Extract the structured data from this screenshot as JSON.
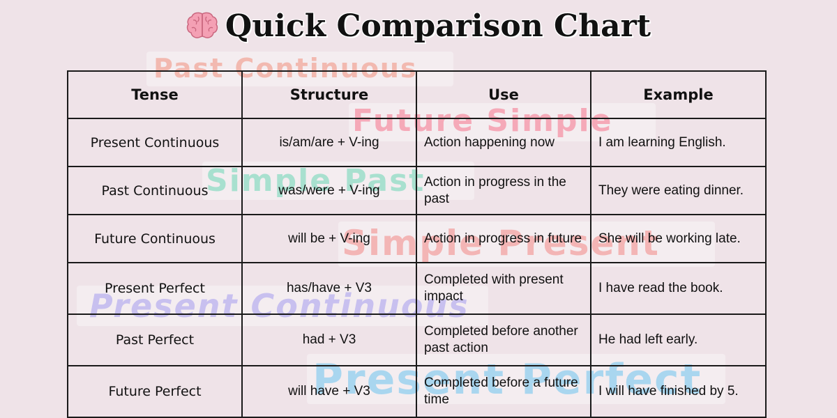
{
  "title": {
    "icon": "brain-icon",
    "text": "Quick Comparison Chart"
  },
  "background_words": [
    {
      "text": "Past Continuous",
      "color": "#f2b9b0"
    },
    {
      "text": "Future Simple",
      "color": "#f5a9b8"
    },
    {
      "text": "Simple Past",
      "color": "#a8e0cf"
    },
    {
      "text": "Simple Present",
      "color": "#f3b5b5"
    },
    {
      "text": "Present Continuous",
      "color": "#c8c0ef"
    },
    {
      "text": "Present Perfect",
      "color": "#a9d6ef"
    }
  ],
  "table": {
    "headers": [
      "Tense",
      "Structure",
      "Use",
      "Example"
    ],
    "rows": [
      {
        "tense": "Present Continuous",
        "structure": "is/am/are + V-ing",
        "use": "Action happening now",
        "example": "I am learning English."
      },
      {
        "tense": "Past Continuous",
        "structure": "was/were + V-ing",
        "use": "Action in progress in the past",
        "example": "They were eating dinner."
      },
      {
        "tense": "Future Continuous",
        "structure": "will be + V-ing",
        "use": "Action in progress in future",
        "example": "She will be working late."
      },
      {
        "tense": "Present Perfect",
        "structure": "has/have + V3",
        "use": "Completed with present impact",
        "example": "I have read the book."
      },
      {
        "tense": "Past Perfect",
        "structure": "had + V3",
        "use": "Completed before another past action",
        "example": "He had left early."
      },
      {
        "tense": "Future Perfect",
        "structure": "will have + V3",
        "use": "Completed before a future time",
        "example": "I will have finished by 5."
      }
    ]
  }
}
